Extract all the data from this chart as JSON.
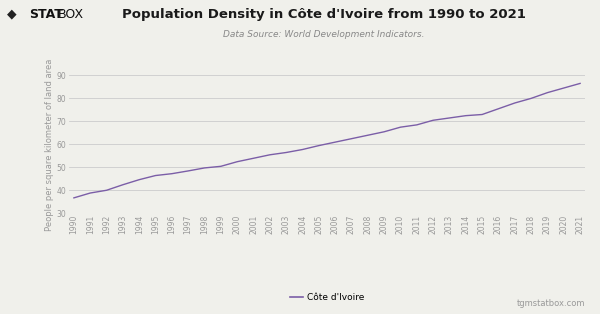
{
  "title": "Population Density in Côte d'Ivoire from 1990 to 2021",
  "subtitle": "Data Source: World Development Indicators.",
  "ylabel": "People per square kilometer of land area",
  "legend_label": "Côte d'Ivoire",
  "watermark": "tgmstatbox.com",
  "logo_text_bold": "STAT",
  "logo_text_light": "BOX",
  "line_color": "#7B5EA7",
  "background_color": "#f0f0eb",
  "years": [
    1990,
    1991,
    1992,
    1993,
    1994,
    1995,
    1996,
    1997,
    1998,
    1999,
    2000,
    2001,
    2002,
    2003,
    2004,
    2005,
    2006,
    2007,
    2008,
    2009,
    2010,
    2011,
    2012,
    2013,
    2014,
    2015,
    2016,
    2017,
    2018,
    2019,
    2020,
    2021
  ],
  "values": [
    36.8,
    38.9,
    40.1,
    42.5,
    44.7,
    46.5,
    47.3,
    48.5,
    49.8,
    50.5,
    52.5,
    54.0,
    55.5,
    56.5,
    57.8,
    59.5,
    61.0,
    62.5,
    64.0,
    65.5,
    67.5,
    68.5,
    70.5,
    71.5,
    72.5,
    73.0,
    75.5,
    78.0,
    80.0,
    82.5,
    84.5,
    86.5
  ],
  "ylim": [
    30,
    90
  ],
  "yticks": [
    30,
    40,
    50,
    60,
    70,
    80,
    90
  ],
  "title_fontsize": 9.5,
  "subtitle_fontsize": 6.5,
  "tick_fontsize": 5.5,
  "ylabel_fontsize": 6,
  "legend_fontsize": 6.5,
  "watermark_fontsize": 6,
  "logo_fontsize": 9
}
